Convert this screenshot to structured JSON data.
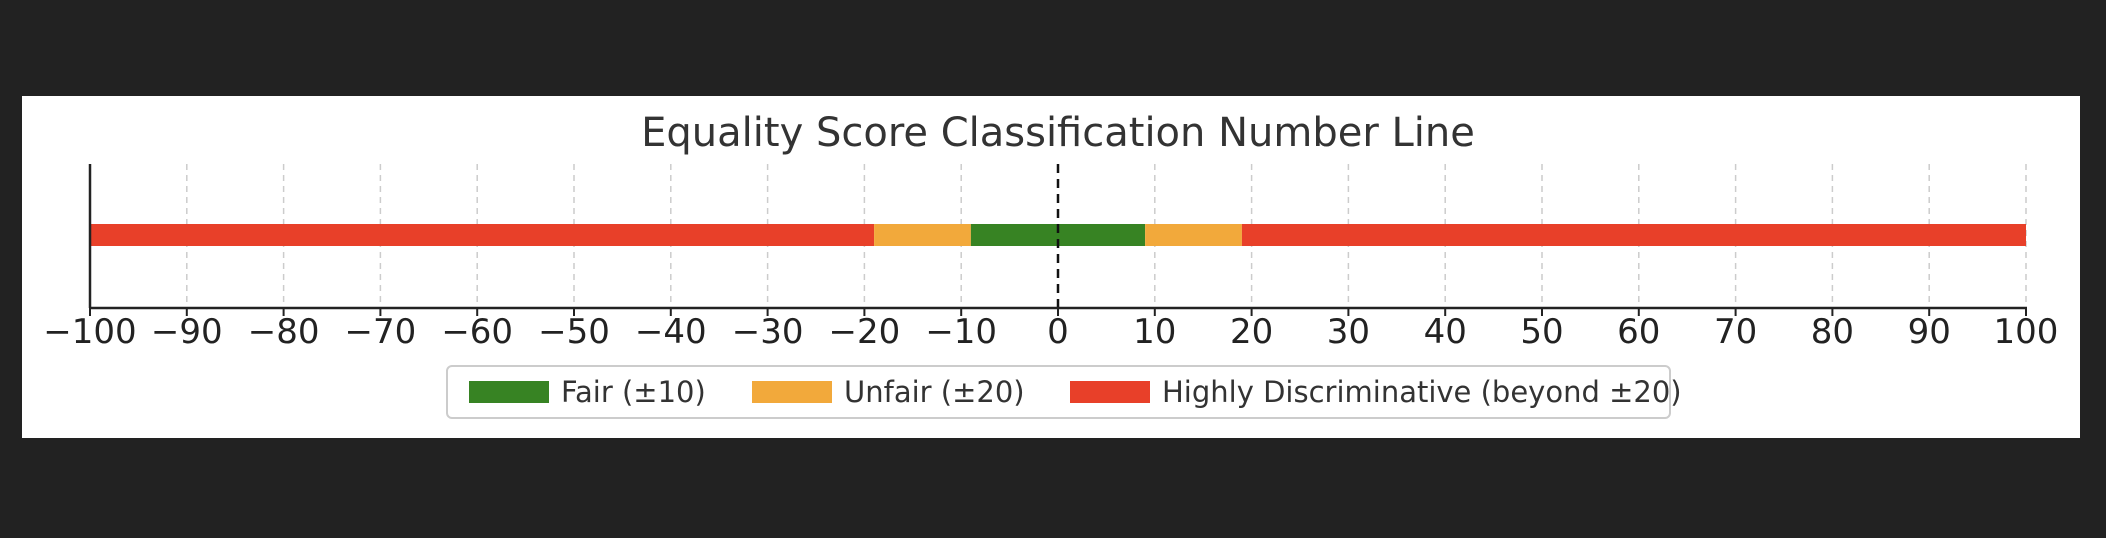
{
  "chart_data": {
    "type": "bar",
    "orientation": "horizontal",
    "title": "Equality Score Classification Number Line",
    "xlabel": "",
    "ylabel": "",
    "xlim": [
      -100,
      100
    ],
    "xticks": [
      -100,
      -90,
      -80,
      -70,
      -60,
      -50,
      -40,
      -30,
      -20,
      -10,
      0,
      10,
      20,
      30,
      40,
      50,
      60,
      70,
      80,
      90,
      100
    ],
    "xtick_labels": [
      "−100",
      "−90",
      "−80",
      "−70",
      "−60",
      "−50",
      "−40",
      "−30",
      "−20",
      "−10",
      "0",
      "10",
      "20",
      "30",
      "40",
      "50",
      "60",
      "70",
      "80",
      "90",
      "100"
    ],
    "grid": true,
    "reference_line": {
      "x": 0,
      "style": "dashed",
      "color": "#111111"
    },
    "segments": [
      {
        "start": -100,
        "end": -19,
        "series": "Highly Discriminative (beyond ±20)",
        "color": "#e84029"
      },
      {
        "start": -19,
        "end": -9,
        "series": "Unfair (±20)",
        "color": "#f2a93b"
      },
      {
        "start": -9,
        "end": 9,
        "series": "Fair (±10)",
        "color": "#378323"
      },
      {
        "start": 9,
        "end": 19,
        "series": "Unfair (±20)",
        "color": "#f2a93b"
      },
      {
        "start": 19,
        "end": 100,
        "series": "Highly Discriminative (beyond ±20)",
        "color": "#e84029"
      }
    ],
    "legend": {
      "placement": "bottom-center",
      "entries": [
        {
          "label": "Fair (±10)",
          "color": "#378323"
        },
        {
          "label": "Unfair (±20)",
          "color": "#f2a93b"
        },
        {
          "label": "Highly Discriminative (beyond ±20)",
          "color": "#e84029"
        }
      ]
    }
  }
}
